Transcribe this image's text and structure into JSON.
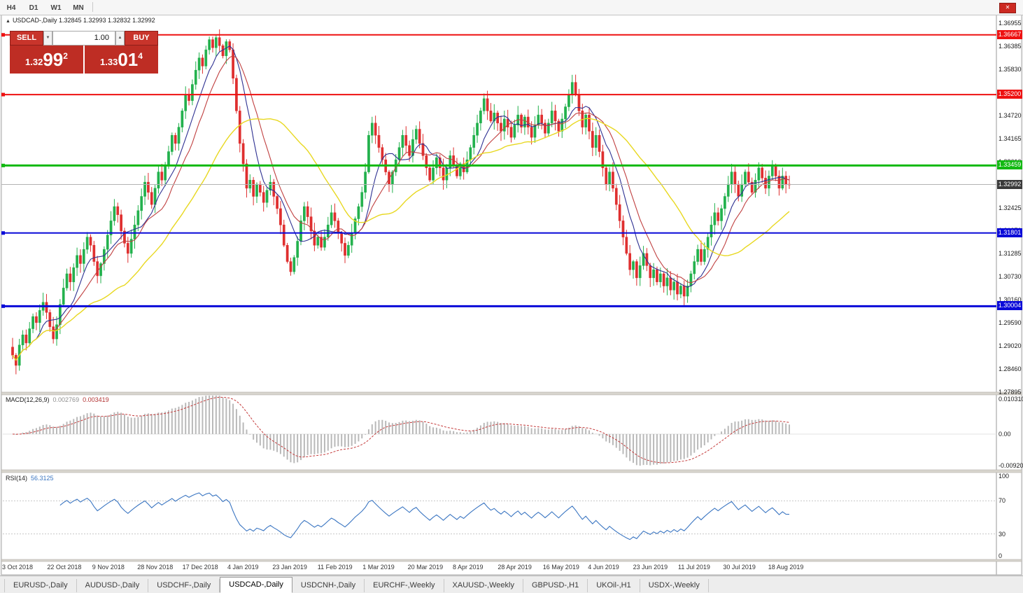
{
  "window": {
    "periods": [
      "H4",
      "D1",
      "W1",
      "MN"
    ],
    "red_button_glyph": "✕"
  },
  "chart_header": {
    "collapse_icon": "▲",
    "title": "USDCAD-,Daily",
    "ohlc": "1.32845 1.32993 1.32832 1.32992"
  },
  "one_click": {
    "sell_label": "SELL",
    "buy_label": "BUY",
    "volume": "1.00",
    "vol_down_glyph": "▼",
    "vol_up_glyph": "▲",
    "sell_price_small": "1.32",
    "sell_price_big": "99",
    "sell_price_sup": "2",
    "buy_price_small": "1.33",
    "buy_price_big": "01",
    "buy_price_sup": "4",
    "accent_color": "#c8342b"
  },
  "chart_data": {
    "type": "candlestick",
    "symbol": "USDCAD-",
    "timeframe": "Daily",
    "title": "USDCAD-,Daily",
    "ylim": [
      1.27895,
      1.36955
    ],
    "y_ticks": [
      "1.36955",
      "1.36385",
      "1.35830",
      "1.35275",
      "1.34720",
      "1.34165",
      "1.33610",
      "1.33055",
      "1.32425",
      "1.31870",
      "1.31285",
      "1.30730",
      "1.30160",
      "1.29590",
      "1.29020",
      "1.28460",
      "1.27895"
    ],
    "x_labels": [
      "3 Oct 2018",
      "22 Oct 2018",
      "9 Nov 2018",
      "28 Nov 2018",
      "17 Dec 2018",
      "4 Jan 2019",
      "23 Jan 2019",
      "11 Feb 2019",
      "1 Mar 2019",
      "20 Mar 2019",
      "8 Apr 2019",
      "28 Apr 2019",
      "16 May 2019",
      "4 Jun 2019",
      "23 Jun 2019",
      "11 Jul 2019",
      "30 Jul 2019",
      "18 Aug 2019"
    ],
    "up_color": "#23b14d",
    "down_color": "#df2f2f",
    "first_open": 1.29,
    "closes": [
      1.288,
      1.2855,
      1.2905,
      1.293,
      1.291,
      1.2945,
      1.2975,
      1.296,
      1.299,
      1.301,
      1.2985,
      1.295,
      1.292,
      1.2955,
      1.3005,
      1.3045,
      1.308,
      1.306,
      1.3095,
      1.3125,
      1.3105,
      1.314,
      1.317,
      1.315,
      1.311,
      1.3075,
      1.3105,
      1.314,
      1.3175,
      1.321,
      1.3245,
      1.3225,
      1.3185,
      1.3155,
      1.313,
      1.3165,
      1.32,
      1.3235,
      1.327,
      1.3305,
      1.328,
      1.325,
      1.329,
      1.333,
      1.331,
      1.3345,
      1.338,
      1.342,
      1.34,
      1.344,
      1.348,
      1.352,
      1.3505,
      1.3545,
      1.358,
      1.361,
      1.359,
      1.363,
      1.3655,
      1.3635,
      1.366,
      1.364,
      1.3615,
      1.365,
      1.363,
      1.356,
      1.348,
      1.34,
      1.335,
      1.329,
      1.331,
      1.327,
      1.33,
      1.328,
      1.3255,
      1.3285,
      1.3305,
      1.327,
      1.324,
      1.32,
      1.315,
      1.311,
      1.3085,
      1.312,
      1.316,
      1.321,
      1.3245,
      1.322,
      1.3185,
      1.315,
      1.317,
      1.3145,
      1.317,
      1.32,
      1.323,
      1.321,
      1.318,
      1.3155,
      1.3125,
      1.315,
      1.318,
      1.3215,
      1.3245,
      1.328,
      1.333,
      1.342,
      1.345,
      1.342,
      1.339,
      1.336,
      1.333,
      1.33,
      1.333,
      1.336,
      1.339,
      1.342,
      1.3395,
      1.337,
      1.341,
      1.3435,
      1.34,
      1.337,
      1.334,
      1.331,
      1.334,
      1.3365,
      1.334,
      1.331,
      1.334,
      1.337,
      1.3345,
      1.332,
      1.335,
      1.333,
      1.336,
      1.339,
      1.342,
      1.345,
      1.348,
      1.351,
      1.348,
      1.3455,
      1.3475,
      1.345,
      1.343,
      1.346,
      1.344,
      1.3415,
      1.3445,
      1.347,
      1.344,
      1.3465,
      1.344,
      1.3415,
      1.3445,
      1.347,
      1.345,
      1.3425,
      1.345,
      1.348,
      1.3455,
      1.343,
      1.346,
      1.349,
      1.352,
      1.355,
      1.352,
      1.348,
      1.344,
      1.347,
      1.343,
      1.339,
      1.342,
      1.338,
      1.334,
      1.33,
      1.333,
      1.329,
      1.325,
      1.321,
      1.317,
      1.313,
      1.309,
      1.311,
      1.307,
      1.31,
      1.313,
      1.31,
      1.307,
      1.309,
      1.306,
      1.308,
      1.305,
      1.307,
      1.304,
      1.306,
      1.303,
      1.305,
      1.3025,
      1.305,
      1.308,
      1.311,
      1.314,
      1.311,
      1.314,
      1.317,
      1.32,
      1.323,
      1.321,
      1.324,
      1.327,
      1.33,
      1.333,
      1.33,
      1.327,
      1.33,
      1.333,
      1.3305,
      1.328,
      1.331,
      1.334,
      1.3315,
      1.329,
      1.332,
      1.3345,
      1.332,
      1.329,
      1.332,
      1.33,
      1.3299
    ],
    "moving_averages": [
      {
        "name": "fast-ma",
        "period": 8,
        "color": "#2e3192"
      },
      {
        "name": "medium-ma",
        "period": 13,
        "color": "#c04040"
      },
      {
        "name": "slow-ma",
        "period": 34,
        "color": "#e8d820"
      }
    ],
    "hlines": [
      {
        "price": 1.36667,
        "label": "1.36667",
        "color": "#ee1111",
        "width": 2
      },
      {
        "price": 1.352,
        "label": "1.35200",
        "color": "#ee1111",
        "width": 2
      },
      {
        "price": 1.33459,
        "label": "1.33459",
        "color": "#12b912",
        "width": 3
      },
      {
        "price": 1.31801,
        "label": "1.31801",
        "color": "#0a0ad8",
        "width": 2
      },
      {
        "price": 1.30004,
        "label": "1.30004",
        "color": "#0a0ad8",
        "width": 3
      }
    ],
    "current_price": {
      "value": 1.32992,
      "label": "1.32992",
      "box_color": "#3a3a3a",
      "line_color": "#b3b3b3"
    },
    "indicators": {
      "macd": {
        "label": "MACD(12,26,9)",
        "value_main": "0.002769",
        "value_signal": "0.003419",
        "fast": 12,
        "slow": 26,
        "signal": 9,
        "axis": [
          {
            "label": "0.010310",
            "value": 0.01031
          },
          {
            "label": "0.00",
            "value": 0
          },
          {
            "label": "-0.009203",
            "value": -0.009203
          }
        ],
        "hist_color": "#b9b9b9",
        "signal_color": "#c43a3a"
      },
      "rsi": {
        "label": "RSI(14)",
        "value": "56.3125",
        "period": 14,
        "axis": [
          {
            "label": "100",
            "value": 100
          },
          {
            "label": "70",
            "value": 70
          },
          {
            "label": "30",
            "value": 30
          },
          {
            "label": "0",
            "value": 0
          }
        ],
        "levels": [
          70,
          30
        ],
        "color": "#3b76c2",
        "level_color": "#c6c6c6"
      }
    }
  },
  "tabs": {
    "active_index": 3,
    "items": [
      "EURUSD-,Daily",
      "AUDUSD-,Daily",
      "USDCHF-,Daily",
      "USDCAD-,Daily",
      "USDCNH-,Daily",
      "EURCHF-,Weekly",
      "XAUUSD-,Weekly",
      "GBPUSD-,H1",
      "UKOil-,H1",
      "USDX-,Weekly"
    ]
  }
}
